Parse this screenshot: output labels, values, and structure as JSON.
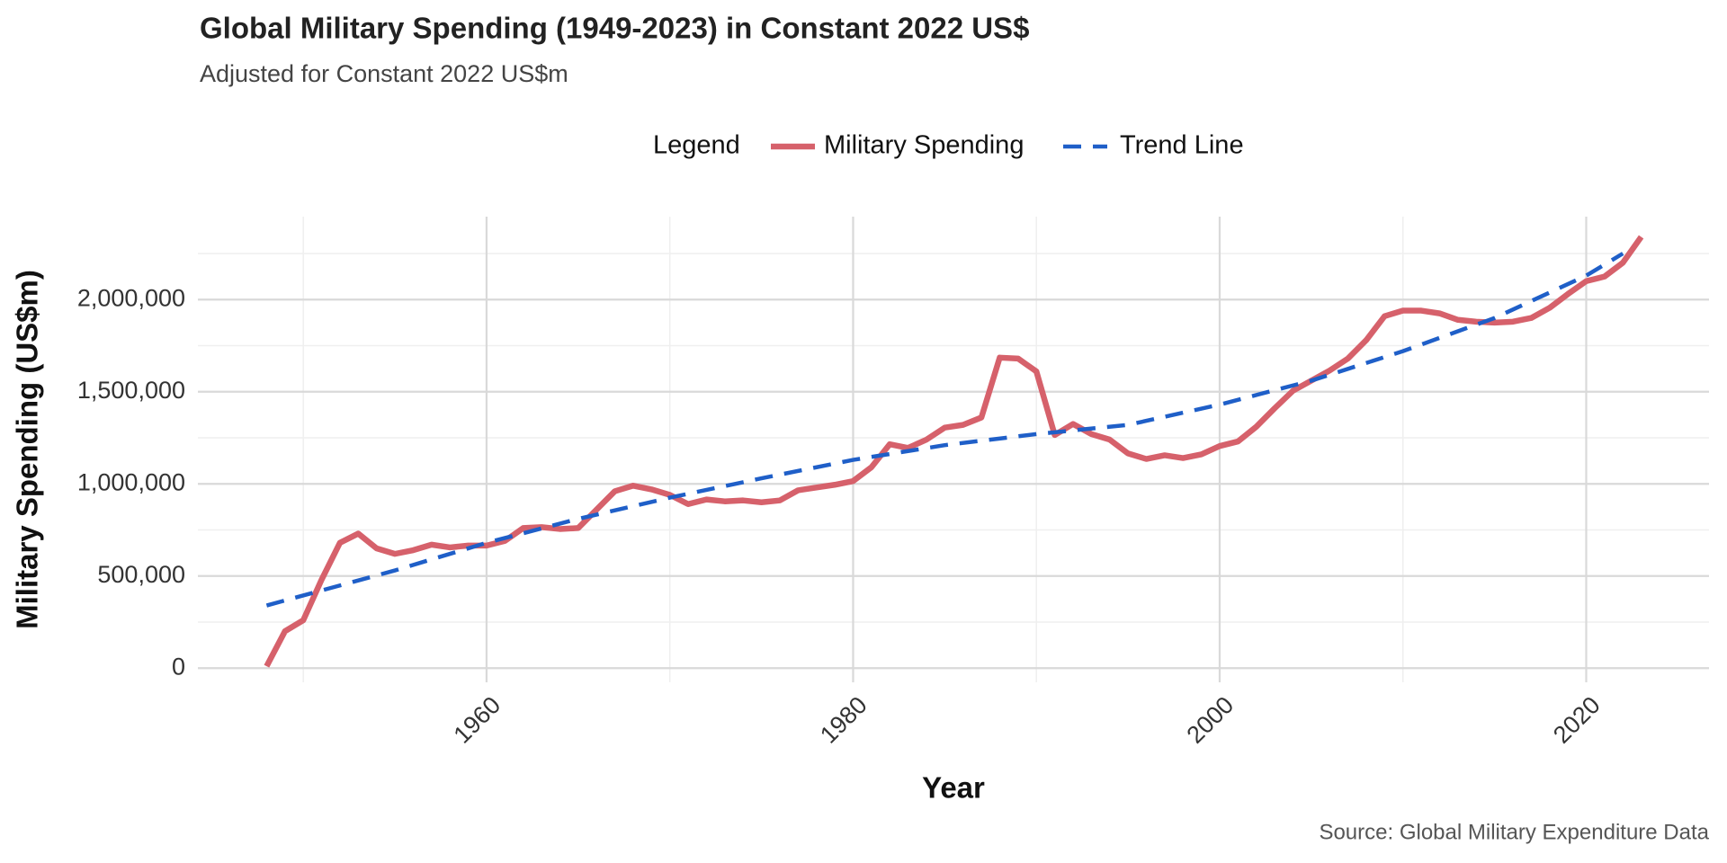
{
  "chart_data": {
    "type": "line",
    "title": "Global Military Spending (1949-2023) in Constant 2022 US$",
    "subtitle": "Adjusted for Constant 2022 US$m",
    "x_label": "Year",
    "y_label": "Military Spending (US$m)",
    "caption": "Source: Global Military Expenditure Data",
    "legend_title": "Legend",
    "legend_position": "top",
    "grid": true,
    "x": [
      1948,
      1949,
      1950,
      1951,
      1952,
      1953,
      1954,
      1955,
      1956,
      1957,
      1958,
      1959,
      1960,
      1961,
      1962,
      1963,
      1964,
      1965,
      1966,
      1967,
      1968,
      1969,
      1970,
      1971,
      1972,
      1973,
      1974,
      1975,
      1976,
      1977,
      1978,
      1979,
      1980,
      1981,
      1982,
      1983,
      1984,
      1985,
      1986,
      1987,
      1988,
      1989,
      1990,
      1991,
      1992,
      1993,
      1994,
      1995,
      1996,
      1997,
      1998,
      1999,
      2000,
      2001,
      2002,
      2003,
      2004,
      2005,
      2006,
      2007,
      2008,
      2009,
      2010,
      2011,
      2012,
      2013,
      2014,
      2015,
      2016,
      2017,
      2018,
      2019,
      2020,
      2021,
      2022,
      2023
    ],
    "series": [
      {
        "name": "Military Spending",
        "color": "#d6616b",
        "dash": false,
        "values": [
          10000,
          200000,
          260000,
          480000,
          680000,
          730000,
          650000,
          620000,
          640000,
          670000,
          655000,
          665000,
          665000,
          690000,
          760000,
          765000,
          755000,
          760000,
          860000,
          960000,
          990000,
          970000,
          940000,
          890000,
          915000,
          905000,
          910000,
          900000,
          910000,
          965000,
          980000,
          995000,
          1015000,
          1090000,
          1215000,
          1195000,
          1240000,
          1305000,
          1320000,
          1360000,
          1685000,
          1680000,
          1610000,
          1265000,
          1325000,
          1270000,
          1240000,
          1165000,
          1135000,
          1155000,
          1140000,
          1160000,
          1205000,
          1230000,
          1310000,
          1410000,
          1505000,
          1560000,
          1615000,
          1680000,
          1780000,
          1910000,
          1940000,
          1940000,
          1925000,
          1890000,
          1880000,
          1875000,
          1880000,
          1900000,
          1955000,
          2030000,
          2100000,
          2125000,
          2200000,
          2340000
        ]
      },
      {
        "name": "Trend Line",
        "color": "#1f5fc8",
        "dash": true,
        "x": [
          1948,
          1955,
          1960,
          1965,
          1970,
          1975,
          1980,
          1985,
          1990,
          1995,
          2000,
          2005,
          2010,
          2015,
          2020,
          2022
        ],
        "values": [
          340000,
          530000,
          680000,
          810000,
          925000,
          1030000,
          1130000,
          1210000,
          1270000,
          1320000,
          1430000,
          1560000,
          1720000,
          1900000,
          2130000,
          2250000
        ]
      }
    ],
    "xlim": [
      1944.25,
      2026.7
    ],
    "xticks": [
      1960,
      1980,
      2000,
      2020
    ],
    "ylim": [
      -77000,
      2450000
    ],
    "yticks": [
      0,
      {
        "value": 500000,
        "label": "500,000"
      },
      {
        "value": 1000000,
        "label": "1,000,000"
      },
      {
        "value": 1500000,
        "label": "1,500,000"
      },
      {
        "value": 2000000,
        "label": "2,000,000"
      }
    ]
  }
}
